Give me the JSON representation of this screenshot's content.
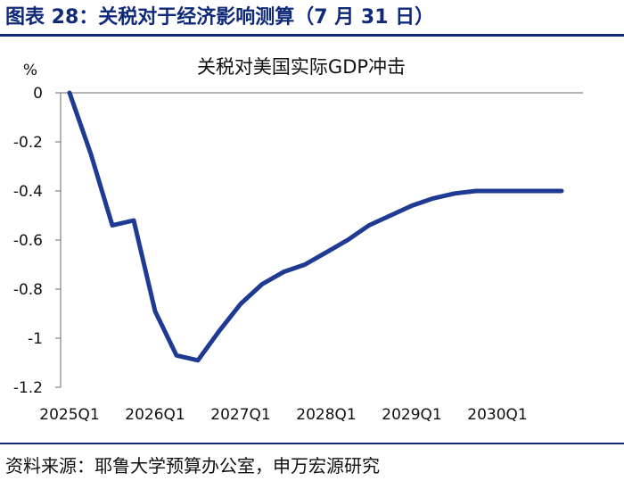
{
  "figure": {
    "title": "图表 28：关税对于经济影响测算（7 月 31 日）",
    "source": "资料来源：耶鲁大学预算办公室，申万宏源研究"
  },
  "colors": {
    "brand": "#0f2a78",
    "line": "#1f3a93"
  },
  "chart_data": {
    "type": "line",
    "title": "关税对美国实际GDP冲击",
    "ylabel": "%",
    "xlabel": "",
    "ylim": [
      -1.2,
      0
    ],
    "yticks": [
      0,
      -0.2,
      -0.4,
      -0.6,
      -0.8,
      -1,
      -1.2
    ],
    "ytick_labels": [
      "0",
      "-0.2",
      "-0.4",
      "-0.6",
      "-0.8",
      "-1",
      "-1.2"
    ],
    "xtick_labels": [
      "2025Q1",
      "2026Q1",
      "2027Q1",
      "2028Q1",
      "2029Q1",
      "2030Q1"
    ],
    "grid": false,
    "series": [
      {
        "x": [
          "2025Q1",
          "2025Q2",
          "2025Q3",
          "2025Q4",
          "2026Q1",
          "2026Q2",
          "2026Q3",
          "2026Q4",
          "2027Q1",
          "2027Q2",
          "2027Q3",
          "2027Q4",
          "2028Q1",
          "2028Q2",
          "2028Q3",
          "2028Q4",
          "2029Q1",
          "2029Q2",
          "2029Q3",
          "2029Q4",
          "2030Q1",
          "2030Q2",
          "2030Q3",
          "2030Q4"
        ],
        "values": [
          0,
          -0.25,
          -0.54,
          -0.52,
          -0.89,
          -1.07,
          -1.09,
          -0.97,
          -0.86,
          -0.78,
          -0.73,
          -0.7,
          -0.65,
          -0.6,
          -0.54,
          -0.5,
          -0.46,
          -0.43,
          -0.41,
          -0.4,
          -0.4,
          -0.4,
          -0.4,
          -0.4
        ]
      }
    ]
  }
}
